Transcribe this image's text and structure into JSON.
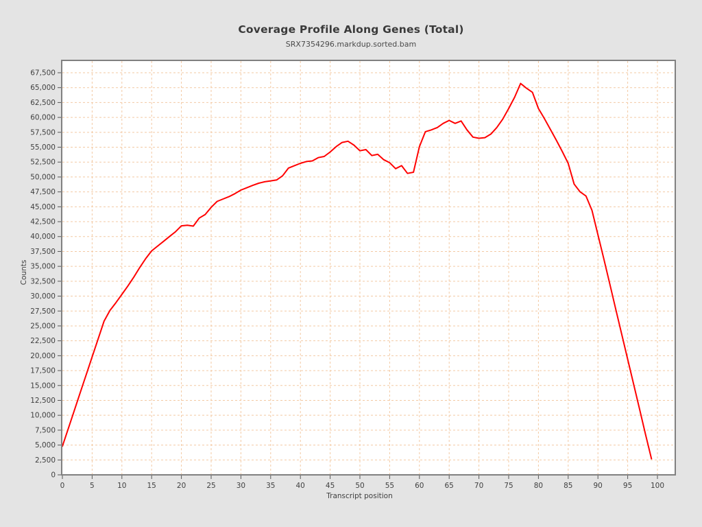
{
  "header": {
    "title": "Coverage Profile Along Genes (Total)",
    "subtitle": "SRX7354296.markdup.sorted.bam"
  },
  "chart_data": {
    "type": "line",
    "title": "Coverage Profile Along Genes (Total)",
    "subtitle": "SRX7354296.markdup.sorted.bam",
    "xlabel": "Transcript position",
    "ylabel": "Counts",
    "xlim": [
      0,
      103
    ],
    "ylim": [
      0,
      67500
    ],
    "grid": true,
    "legend": "none",
    "x_ticks": [
      0,
      5,
      10,
      15,
      20,
      25,
      30,
      35,
      40,
      45,
      50,
      55,
      60,
      65,
      70,
      75,
      80,
      85,
      90,
      95,
      100
    ],
    "y_ticks": [
      0,
      2500,
      5000,
      7500,
      10000,
      12500,
      15000,
      17500,
      20000,
      22500,
      25000,
      27500,
      30000,
      32500,
      35000,
      37500,
      40000,
      42500,
      45000,
      47500,
      50000,
      52500,
      55000,
      57500,
      60000,
      62500,
      65000,
      67500
    ],
    "series": [
      {
        "name": "SRX7354296.markdup.sorted.bam",
        "color": "#ff0000",
        "x_start": 0,
        "x_step": 1,
        "values": [
          4800,
          7800,
          10800,
          13800,
          16800,
          19800,
          22800,
          25800,
          27600,
          28900,
          30300,
          31700,
          33200,
          34800,
          36300,
          37600,
          38400,
          39200,
          40000,
          40800,
          41800,
          41900,
          41750,
          43100,
          43700,
          44900,
          45900,
          46300,
          46700,
          47200,
          47800,
          48200,
          48600,
          48950,
          49200,
          49350,
          49500,
          50200,
          51500,
          51900,
          52300,
          52600,
          52700,
          53250,
          53450,
          54200,
          55100,
          55800,
          56000,
          55350,
          54400,
          54600,
          53600,
          53800,
          52900,
          52400,
          51400,
          51900,
          50600,
          50800,
          55100,
          57600,
          57900,
          58300,
          59000,
          59500,
          59000,
          59400,
          57900,
          56700,
          56500,
          56600,
          57200,
          58300,
          59700,
          61500,
          63400,
          65700,
          64900,
          64200,
          61500,
          59800,
          58000,
          56200,
          54300,
          52300,
          48800,
          47500,
          46800,
          44400,
          40300,
          36200,
          32000,
          27800,
          23600,
          19400,
          15200,
          11000,
          6800,
          2700
        ]
      }
    ],
    "colors": {
      "background": "#e4e4e4",
      "plot_background": "#ffffff",
      "grid": "#f3c9a2",
      "frame": "#808080",
      "line": "#ff0000",
      "text": "#3f3f3f",
      "tick": "#555555"
    }
  }
}
